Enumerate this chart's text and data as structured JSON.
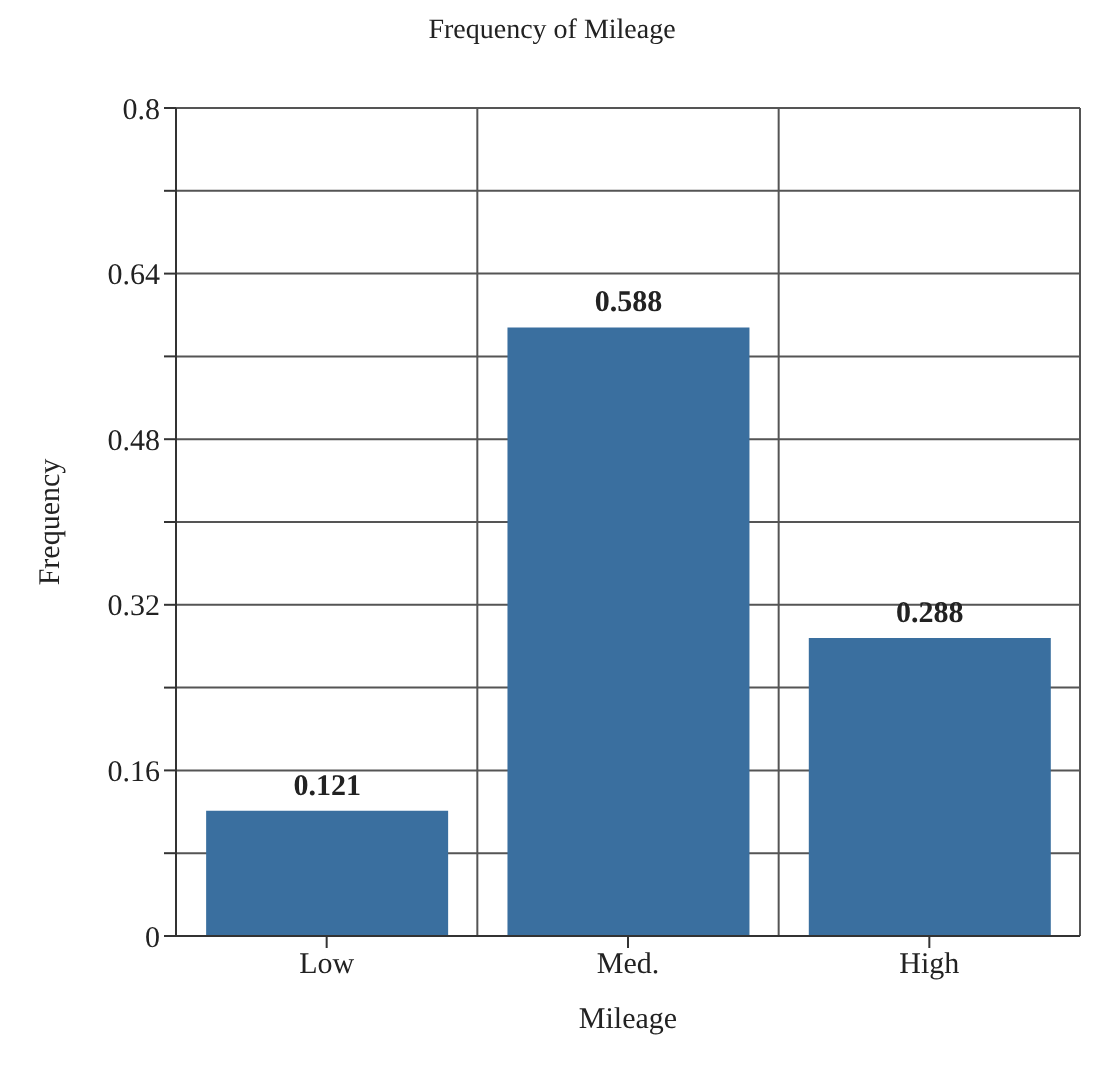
{
  "chart_data": {
    "type": "bar",
    "title": "Frequency of Mileage",
    "xlabel": "Mileage",
    "ylabel": "Frequency",
    "categories": [
      "Low",
      "Med.",
      "High"
    ],
    "values": [
      0.121,
      0.588,
      0.288
    ],
    "color": "#3a6f9f",
    "data_labels": true,
    "ylim": [
      0,
      0.8
    ],
    "yticks": [
      0,
      {
        "value": 0.08,
        "label": null
      },
      0.16,
      {
        "value": 0.24,
        "label": null
      },
      0.32,
      {
        "value": 0.4,
        "label": null
      },
      0.48,
      {
        "value": 0.56,
        "label": null
      },
      0.64,
      {
        "value": 0.72,
        "label": null
      },
      0.8
    ],
    "grid": true,
    "legend": false
  }
}
